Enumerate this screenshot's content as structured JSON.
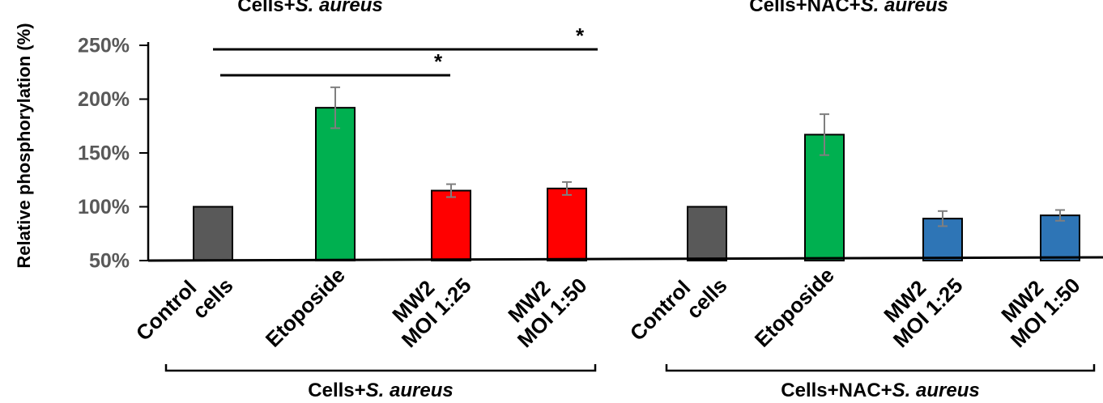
{
  "chart_data": {
    "type": "bar",
    "ylabel": "Relative phosphorylation (%)",
    "ylim": [
      50,
      250
    ],
    "yticks": [
      "50%",
      "100%",
      "150%",
      "200%",
      "250%"
    ],
    "ytick_values": [
      50,
      100,
      150,
      200,
      250
    ],
    "groups": [
      {
        "top_label": {
          "prefix": "Cells+",
          "italic": "S. aureus"
        },
        "bottom_label": {
          "prefix": "Cells+",
          "italic": "S. aureus"
        },
        "categories": [
          [
            "Control",
            "cells"
          ],
          [
            "Etoposide"
          ],
          [
            "MW2",
            "MOI 1:25"
          ],
          [
            "MW2",
            "MOI 1:50"
          ]
        ],
        "values": [
          100,
          192,
          115,
          117
        ],
        "errors": [
          0,
          19,
          6,
          6
        ],
        "colors": [
          "#595959",
          "#00b050",
          "#ff0000",
          "#ff0000"
        ]
      },
      {
        "top_label": {
          "prefix": "Cells+NAC+",
          "italic": "S. aureus"
        },
        "bottom_label": {
          "prefix": "Cells+NAC+",
          "italic": "S. aureus"
        },
        "categories": [
          [
            "Control",
            "cells"
          ],
          [
            "Etoposide"
          ],
          [
            "MW2",
            "MOI 1:25"
          ],
          [
            "MW2",
            "MOI 1:50"
          ]
        ],
        "values": [
          100,
          167,
          89,
          92
        ],
        "errors": [
          0,
          19,
          7,
          5
        ],
        "colors": [
          "#595959",
          "#00b050",
          "#2e75b6",
          "#2e75b6"
        ]
      }
    ],
    "significance": [
      {
        "from": 0,
        "to": 2,
        "label": "*"
      },
      {
        "from": 0,
        "to": 3,
        "label": "*"
      }
    ]
  }
}
